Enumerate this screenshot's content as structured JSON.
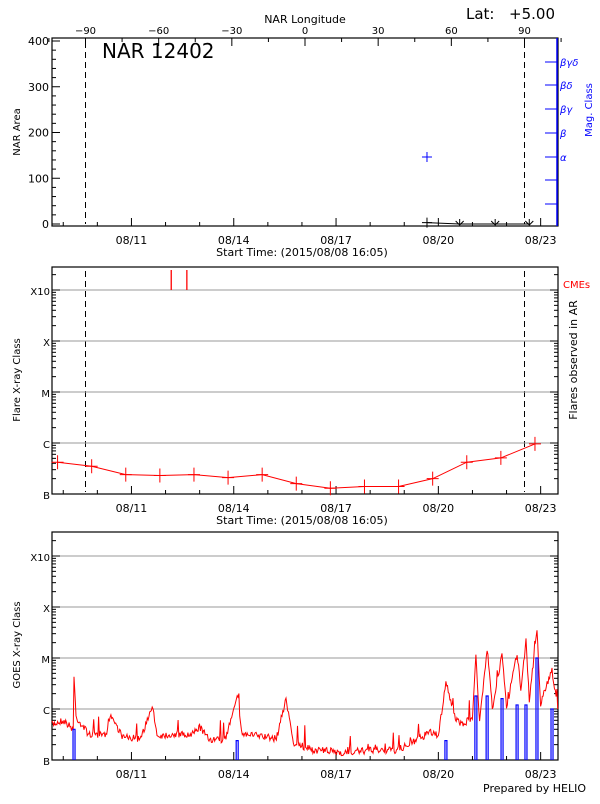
{
  "chart_data": [
    {
      "type": "scatter",
      "title": "NAR 12402",
      "lat_label": "Lat:",
      "lat_value": "+5.00",
      "top_axis_title": "NAR Longitude",
      "top_ticks": [
        "-90",
        "-60",
        "-30",
        "0",
        "30",
        "60",
        "90"
      ],
      "ylabel": "NAR Area",
      "ylim": [
        0,
        400
      ],
      "yticks": [
        "0",
        "100",
        "200",
        "300",
        "400"
      ],
      "y2label": "Mag. Class",
      "y2ticks": [
        "α",
        "β",
        "βγ",
        "βδ",
        "βγδ"
      ],
      "xlabel": "Start Time: (2015/08/08 16:05)",
      "xticks": [
        "08/11",
        "08/14",
        "08/17",
        "08/20",
        "08/23"
      ],
      "limb_longitudes": [
        -90,
        90
      ],
      "area_series": [
        {
          "time": "08/19 16:00",
          "area": 3,
          "marker": "plus"
        },
        {
          "time": "08/20 15:00",
          "area": 0,
          "marker": "down"
        },
        {
          "time": "08/21 16:00",
          "area": 0,
          "marker": "down"
        },
        {
          "time": "08/22 16:00",
          "area": 0,
          "marker": "down"
        }
      ],
      "mag_class_points": [
        {
          "time": "08/19 16:00",
          "class": "α"
        }
      ],
      "colors": {
        "area": "#000000",
        "mag": "#0000ff"
      }
    },
    {
      "type": "line",
      "ylabel": "Flare X-ray Class",
      "y2label": "Flares observed in AR",
      "cme_label": "CMEs",
      "yticks": [
        "B",
        "C",
        "M",
        "X",
        "X10"
      ],
      "xlabel": "Start Time: (2015/08/08 16:05)",
      "xticks": [
        "08/11",
        "08/14",
        "08/17",
        "08/20",
        "08/23"
      ],
      "flares": [
        {
          "time": "08/08 20:00",
          "class": "B4.2"
        },
        {
          "time": "08/09 20:00",
          "class": "B3.5"
        },
        {
          "time": "08/10 20:00",
          "class": "B2.4"
        },
        {
          "time": "08/11 20:00",
          "class": "B2.3"
        },
        {
          "time": "08/12 20:00",
          "class": "B2.4"
        },
        {
          "time": "08/13 20:00",
          "class": "B2.1"
        },
        {
          "time": "08/14 20:00",
          "class": "B2.4"
        },
        {
          "time": "08/15 20:00",
          "class": "B1.6"
        },
        {
          "time": "08/16 20:00",
          "class": "B1.3"
        },
        {
          "time": "08/17 20:00",
          "class": "B1.4"
        },
        {
          "time": "08/18 20:00",
          "class": "B1.4"
        },
        {
          "time": "08/19 20:00",
          "class": "B2.0"
        },
        {
          "time": "08/20 20:00",
          "class": "B4.2"
        },
        {
          "time": "08/21 20:00",
          "class": "B5.1"
        },
        {
          "time": "08/22 20:00",
          "class": "B9.6"
        }
      ],
      "cmes": [
        "08/12 04:00",
        "08/12 15:00"
      ],
      "colors": {
        "flares": "#ff0000",
        "cmes": "#ff0000"
      }
    },
    {
      "type": "line",
      "ylabel": "GOES X-ray Class",
      "yticks": [
        "B",
        "C",
        "M",
        "X",
        "X10"
      ],
      "xticks": [
        "08/11",
        "08/14",
        "08/17",
        "08/20",
        "08/23"
      ],
      "credit": "Prepared by HELIO",
      "series": [
        {
          "color": "#ff0000",
          "points": [
            [
              "08/08 16:05",
              5e-07
            ],
            [
              "08/09 00:00",
              6e-07
            ],
            [
              "08/09 07:00",
              4e-07
            ],
            [
              "08/09 07:35",
              4.3e-06
            ],
            [
              "08/09 09:00",
              7e-07
            ],
            [
              "08/09 18:00",
              3.2e-07
            ],
            [
              "08/10 06:00",
              3e-07
            ],
            [
              "08/10 09:00",
              8e-07
            ],
            [
              "08/10 18:00",
              2.8e-07
            ],
            [
              "08/11 06:00",
              2.6e-07
            ],
            [
              "08/11 15:10",
              1.1e-06
            ],
            [
              "08/11 18:00",
              3e-07
            ],
            [
              "08/12 06:00",
              3.2e-07
            ],
            [
              "08/12 18:00",
              3e-07
            ],
            [
              "08/13 00:00",
              4.5e-07
            ],
            [
              "08/13 06:00",
              2.6e-07
            ],
            [
              "08/13 18:00",
              2.4e-07
            ],
            [
              "08/14 02:25",
              2e-06
            ],
            [
              "08/14 06:00",
              3.2e-07
            ],
            [
              "08/14 18:00",
              3e-07
            ],
            [
              "08/15 06:00",
              2.6e-07
            ],
            [
              "08/15 12:45",
              1.6e-06
            ],
            [
              "08/15 18:00",
              2.2e-07
            ],
            [
              "08/16 06:00",
              1.6e-07
            ],
            [
              "08/16 18:00",
              1.5e-07
            ],
            [
              "08/17 06:00",
              1.4e-07
            ],
            [
              "08/17 18:00",
              1.5e-07
            ],
            [
              "08/18 06:00",
              1.6e-07
            ],
            [
              "08/18 18:00",
              1.5e-07
            ],
            [
              "08/19 06:00",
              2.2e-07
            ],
            [
              "08/19 18:00",
              3.5e-07
            ],
            [
              "08/20 00:00",
              3e-07
            ],
            [
              "08/20 05:20",
              3.5e-06
            ],
            [
              "08/20 12:00",
              6e-07
            ],
            [
              "08/20 18:00",
              5e-07
            ],
            [
              "08/21 00:00",
              7e-07
            ],
            [
              "08/21 02:25",
              1.3e-05
            ],
            [
              "08/21 05:00",
              5e-07
            ],
            [
              "08/21 10:20",
              1.6e-05
            ],
            [
              "08/21 14:00",
              1e-06
            ],
            [
              "08/21 20:50",
              1.2e-05
            ],
            [
              "08/22 00:00",
              1e-06
            ],
            [
              "08/22 07:25",
              1.3e-05
            ],
            [
              "08/22 10:00",
              2.5e-06
            ],
            [
              "08/22 13:40",
              2.2e-05
            ],
            [
              "08/22 16:00",
              1.5e-06
            ],
            [
              "08/22 21:25",
              3.5e-05
            ],
            [
              "08/23 00:00",
              1.3e-06
            ],
            [
              "08/23 08:00",
              6e-06
            ],
            [
              "08/23 12:00",
              1e-06
            ]
          ]
        },
        {
          "color": "#0000ff",
          "points": [
            [
              "08/09 07:35",
              4e-07
            ],
            [
              "08/14 02:25",
              2.4e-07
            ],
            [
              "08/20 05:20",
              2.4e-07
            ],
            [
              "08/21 02:25",
              1.8e-06
            ],
            [
              "08/21 10:20",
              1.8e-06
            ],
            [
              "08/21 20:50",
              1.6e-06
            ],
            [
              "08/22 07:25",
              1.2e-06
            ],
            [
              "08/22 13:40",
              1.2e-06
            ],
            [
              "08/22 21:25",
              1e-05
            ],
            [
              "08/23 08:00",
              1e-06
            ]
          ]
        }
      ]
    }
  ]
}
